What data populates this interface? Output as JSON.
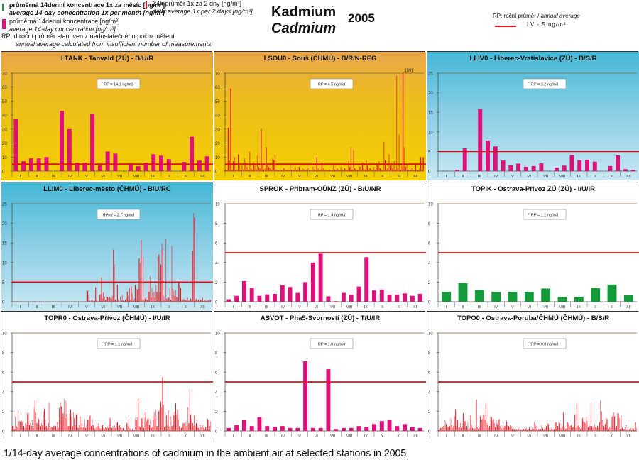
{
  "legend": {
    "green": {
      "cz": "průměrná 14denní koncentrace 1x za měsíc  [ng/m³]",
      "en": "average 14-day concentration 1x per month  [ng/m³]",
      "color": "#1a9a3a"
    },
    "red": {
      "cz": "24h průměr 1x za 2 dny [ng/m³]",
      "en": "daily average 1x per 2 days [ng/m³]",
      "color": "#e0101a"
    },
    "magenta": {
      "cz": "průměrná 14denní koncentrace [ng/m³]",
      "en": "average 14-day concentration  [ng/m³]",
      "color": "#e0107a"
    },
    "rpnd": {
      "cz": "RPnd  roční průměr stanoven z nedostatečného počtu měření",
      "en": "annual average calculated from insufficient number of measurements"
    }
  },
  "title": {
    "cz": "Kadmium",
    "en": "Cadmium",
    "year": "2005"
  },
  "rp_legend": {
    "cz": "RP: roční průměr / ",
    "en": "annual average",
    "lv_label": "LV    - 5 ng/m³",
    "lv_color": "#e0101a"
  },
  "caption": "1/14-day average concentrations of cadmium in the ambient air at selected stations in 2005",
  "months": [
    "I",
    "II",
    "III",
    "IV",
    "V",
    "VI",
    "VII",
    "VIII",
    "IX",
    "X",
    "XI",
    "XII"
  ],
  "chart_data": [
    {
      "id": "LTANK",
      "type": "bar",
      "title": "LTANK - Tanvald (ZÚ) - B/U/R",
      "background": "orange",
      "series_kind": "14day",
      "ylim": [
        0,
        70
      ],
      "yticks": [
        0,
        10,
        20,
        30,
        40,
        50,
        60,
        70
      ],
      "annotation": "RP = 14.1 ng/m3",
      "limit": 5,
      "values": [
        37,
        7,
        9,
        9,
        10,
        null,
        43,
        30,
        6,
        6,
        41,
        4,
        14,
        12.5,
        null,
        5.5,
        3.5,
        6,
        12,
        11,
        8.5,
        null,
        6.5,
        24.5,
        7.5,
        10.5
      ]
    },
    {
      "id": "LSOU0",
      "type": "bar",
      "title": "LSOU0 - Souš (ČHMÚ) - B/R/N-REG",
      "background": "orange",
      "series_kind": "daily",
      "ylim": [
        0,
        70
      ],
      "yticks": [
        0,
        10,
        20,
        30,
        40,
        50,
        60,
        70
      ],
      "annotation": "RP = 4.5 ng/m3",
      "limit": 5,
      "overflow_label": "[89]",
      "values": [
        1,
        0.5,
        31,
        8,
        59,
        1,
        7,
        10,
        0.5,
        1,
        12,
        4,
        0.5,
        4,
        1,
        9,
        6,
        3,
        1,
        14,
        2,
        1,
        6,
        4,
        1,
        11,
        3,
        2,
        30,
        5,
        1,
        2,
        17,
        4,
        3,
        2,
        1,
        9,
        8,
        12,
        1,
        0.5,
        0.5,
        1,
        0.5,
        1,
        2,
        1,
        0.5,
        1,
        0.5,
        4,
        1,
        0.5,
        0.5,
        3,
        0.5,
        1,
        3,
        0.5,
        0.5,
        2,
        1,
        0.5,
        1,
        2,
        0.5,
        1,
        0.5,
        3,
        1,
        0.5,
        10,
        2,
        0.5,
        1,
        6,
        2,
        0.5,
        1,
        0.5,
        0.5,
        1,
        0.5,
        0.5,
        4,
        1,
        0.5,
        2,
        1,
        0.5,
        3,
        1,
        0.5,
        2,
        1,
        0.5,
        7,
        3,
        17,
        1,
        15,
        2,
        1,
        0.5,
        1,
        3,
        1,
        6,
        2,
        1,
        8,
        4,
        1,
        2,
        1,
        0.5,
        3,
        1,
        6,
        4,
        7,
        2,
        1,
        0.5,
        21,
        8,
        1,
        2,
        12,
        4,
        6,
        2,
        7,
        1,
        68,
        2,
        26,
        1,
        4,
        89,
        17,
        3,
        5,
        1,
        0.5,
        1,
        2,
        1,
        0.5,
        5,
        1,
        0.5,
        2,
        10,
        1,
        10
      ]
    },
    {
      "id": "LLIV0",
      "type": "bar",
      "title": "LLIV0 - Liberec-Vratislavice (ZÚ) - B/S/R",
      "background": "blue",
      "series_kind": "14day",
      "ylim": [
        0,
        25
      ],
      "yticks": [
        0,
        5,
        10,
        15,
        20,
        25
      ],
      "annotation": "RP = 3.2 ng/m3",
      "limit": 5,
      "values": [
        null,
        null,
        0.3,
        5.8,
        null,
        15.8,
        7.8,
        6.3,
        2.7,
        1.5,
        1.9,
        1.1,
        1.3,
        2,
        null,
        0.9,
        1.4,
        4.1,
        2.8,
        2.9,
        2.4,
        null,
        1.3,
        4,
        0.5,
        0.3
      ]
    },
    {
      "id": "LLIM0",
      "type": "bar",
      "title": "LLIM0 - Liberec-město (ČHMÚ) - B/U/RC",
      "background": "blue",
      "series_kind": "daily",
      "ylim": [
        0,
        25
      ],
      "yticks": [
        0,
        5,
        10,
        15,
        20,
        25
      ],
      "annotation": "RPnd = 2.7 ng/m3",
      "annotation_italic": true,
      "limit": 5,
      "values": [
        0,
        0,
        0,
        0,
        0,
        0,
        0,
        0,
        0,
        0,
        0,
        0,
        0,
        0,
        0,
        0,
        0,
        0,
        0,
        0,
        0,
        0,
        0,
        0,
        0,
        0,
        0,
        0,
        0,
        0,
        0,
        0,
        0,
        0,
        0,
        0,
        0,
        0,
        0,
        0,
        0,
        0,
        0,
        0,
        0,
        0,
        0,
        0,
        0,
        0,
        0,
        0,
        0,
        0,
        0,
        0,
        0,
        0,
        0,
        0,
        0,
        0,
        0,
        0,
        0,
        0,
        0,
        0,
        0,
        0,
        0,
        0,
        0,
        0,
        0,
        3,
        2.8,
        1.6,
        0.3,
        0,
        0.5,
        0.4,
        0,
        0.3,
        3.7,
        0.5,
        0,
        0.2,
        1.8,
        2,
        6.2,
        0.8,
        2.3,
        1.3,
        0.5,
        1.3,
        1.2,
        1,
        1.2,
        1,
        0.8,
        1.5,
        13.3,
        9.5,
        0.5,
        0,
        4.3,
        0.5,
        0,
        1.3,
        0.4,
        1.8,
        0.3,
        0.2,
        0.5,
        0.8,
        2.6,
        1.5,
        3.5,
        0.5,
        4,
        2.2,
        0.5,
        0.8,
        4.3,
        0.5,
        3.2,
        3.2,
        11,
        9.8,
        15.8,
        0.5,
        11.7,
        0.5,
        0.8,
        1.2,
        0.5,
        5.6,
        2.5,
        6.5,
        1,
        3.5,
        2.2,
        2.5,
        1,
        4.3,
        2.5,
        11.5,
        12,
        2.5,
        9.5,
        14.8,
        13.3,
        1.5,
        0.5,
        16.1,
        0.8,
        0.5,
        1,
        3.5,
        0.5,
        14.2,
        3.2,
        2.8,
        1.5,
        3,
        1.2,
        1,
        4.9,
        4.9,
        3.5,
        0.5,
        0.5,
        0.8,
        0.5,
        0.5,
        0.3,
        1,
        0.3,
        0.2,
        0.8,
        0.6,
        13,
        22.6,
        21.5,
        0.5,
        0.8,
        0.3,
        0.5,
        0.2,
        0.5,
        0.5,
        1,
        0.2,
        0.3,
        0.5,
        0.2,
        0.5,
        0.3,
        0.6,
        0.5
      ]
    },
    {
      "id": "SPROK",
      "type": "bar",
      "title": "SPROK - Příbram-OÚNZ (ZÚ) - B/U/NR",
      "background": "white",
      "series_kind": "14day",
      "ylim": [
        0,
        10
      ],
      "yticks": [
        0,
        2,
        4,
        6,
        8,
        10
      ],
      "annotation": "RP = 1.4 ng/m3",
      "limit": 5,
      "values": [
        0.25,
        0.6,
        2.1,
        1.4,
        0.6,
        0.75,
        0.8,
        1.7,
        1.5,
        0.9,
        2,
        4,
        4.9,
        0.55,
        0.05,
        0.9,
        0.7,
        1.55,
        4.55,
        1.15,
        1.25,
        0.7,
        0.7,
        0.85,
        0.6,
        0.8
      ]
    },
    {
      "id": "TOPIK",
      "type": "bar",
      "title": "TOPIK - Ostrava-Přívoz ZÚ (ZÚ) - I/U/IR",
      "background": "white",
      "series_kind": "monthly",
      "ylim": [
        0,
        10
      ],
      "yticks": [
        0,
        2,
        4,
        6,
        8,
        10
      ],
      "annotation": "RP = 1.1 ng/m3",
      "limit": 5,
      "values": [
        1,
        1.9,
        1.2,
        1,
        1,
        1,
        1.35,
        0.5,
        0.5,
        1.4,
        1.75,
        0.65
      ]
    },
    {
      "id": "TOPR0",
      "type": "bar",
      "title": "TOPR0 - Ostrava-Přívoz (ČHMÚ) - I/U/IR",
      "background": "white",
      "series_kind": "daily",
      "ylim": [
        0,
        10
      ],
      "yticks": [
        0,
        2,
        4,
        6,
        8,
        10
      ],
      "annotation": "RP = 1.1 ng/m3",
      "limit": 5,
      "values": [
        0.5,
        0.5,
        0.2,
        1.5,
        0.5,
        0.4,
        2.1,
        1,
        1,
        0.3,
        1,
        0.8,
        0.5,
        0.3,
        0.8,
        0.6,
        1.8,
        1.8,
        0.6,
        0.8,
        0.5,
        1.1,
        0.3,
        2.3,
        3.1,
        1.9,
        0.8,
        0.5,
        1.2,
        0.6,
        0.5,
        0.8,
        0.6,
        2,
        2.3,
        1.2,
        0.5,
        0.3,
        0.8,
        2.9,
        0.3,
        0.4,
        0.4,
        0.3,
        0.5,
        0.6,
        0.5,
        0.2,
        0.9,
        0.3,
        2.3,
        2.9,
        2.5,
        1.4,
        1.8,
        3.3,
        1.3,
        3.1,
        1.7,
        0.5,
        0.5,
        1.8,
        2.2,
        1.5,
        0.5,
        1.9,
        1.3,
        0.6,
        1.7,
        1.7,
        0.3,
        0.6,
        1.5,
        0.4,
        0.8,
        0.3,
        0.4,
        1.2,
        0.3,
        0.6,
        1.1,
        1.1,
        1.5,
        1.6,
        0.5,
        1.2,
        0.6,
        0.3,
        0.2,
        0.4,
        0.5,
        0.5,
        0.8,
        0.3,
        0.2,
        0.3,
        0.6,
        0.3,
        0.2,
        0.4,
        0.3,
        0.5,
        0.3,
        0.6,
        1.3,
        0.2,
        0.3,
        0.5,
        0.3,
        0.6,
        0.3,
        0.8,
        0.9,
        0.5,
        0.6,
        0.4,
        0.3,
        0.1,
        0.3,
        0.2,
        0.1,
        0.2,
        0.8,
        0.5,
        1.2,
        0.3,
        0.2,
        0.1,
        0.2,
        0.1,
        0.1,
        1.3,
        1.1,
        1.4,
        3.3,
        0.5,
        0.4,
        1.3,
        1.3,
        0.6,
        0.3,
        1.4,
        1.9,
        1,
        1.2,
        1.3,
        0.6,
        1.2,
        0.3,
        0.4,
        1.1,
        1.9,
        1.5,
        2.2,
        0.5,
        0.3,
        2,
        2.2,
        3,
        2.4,
        5.5,
        2.7,
        0.4,
        0.5,
        1.6,
        0.6,
        2.1,
        0.5,
        0.2,
        1.5,
        0.5,
        0.6,
        1.6,
        2,
        2.8,
        1.7,
        2.2,
        1.2,
        0.5,
        0.2,
        0.3,
        0.5,
        0.8,
        0.8,
        0.5,
        0.9,
        0.5,
        2.4,
        0.8,
        4.3,
        1.7,
        1.2,
        0.8,
        0.5,
        1.6,
        0.5,
        0.8,
        0.6,
        0.3,
        0.2,
        0.6,
        0.4,
        0.4,
        0.6,
        0.3,
        0.2,
        0.4,
        0.2,
        1.2,
        1.1,
        0.5,
        1
      ]
    },
    {
      "id": "ASVOT",
      "type": "bar",
      "title": "ASVOT - Pha5-Svornosti (ZÚ) - T/U/IR",
      "background": "white",
      "series_kind": "14day",
      "ylim": [
        0,
        10
      ],
      "yticks": [
        0,
        2,
        4,
        6,
        8,
        10
      ],
      "annotation": "RP = 1.0 ng/m3",
      "limit": 5,
      "values": [
        0.3,
        0.6,
        1.1,
        0.5,
        1.4,
        0.5,
        0.4,
        0.5,
        0.3,
        0.3,
        7.1,
        0.3,
        0.3,
        6.3,
        0.2,
        0.3,
        0.3,
        0.5,
        0.4,
        0.7,
        1,
        1.1,
        0.5,
        0.7,
        0.4,
        0.3
      ]
    },
    {
      "id": "TOPO0",
      "type": "bar",
      "title": "TOPO0 - Ostrava-Poruba/ČHMÚ (ČHMÚ) - B/S/R",
      "background": "white",
      "series_kind": "daily",
      "ylim": [
        0,
        10
      ],
      "yticks": [
        0,
        2,
        4,
        6,
        8,
        10
      ],
      "annotation": "RP = 0.8 ng/m3",
      "limit": 5,
      "values": [
        0.1,
        0.2,
        0.3,
        0.3,
        0.4,
        0.5,
        0.3,
        1.1,
        0.7,
        0.2,
        0.4,
        0.6,
        0.5,
        1.3,
        0.6,
        0.3,
        0.5,
        1.5,
        2.2,
        0.5,
        1.1,
        0.3,
        0.4,
        0.8,
        0.3,
        0.5,
        1.8,
        1,
        1,
        0.3,
        0.5,
        0.9,
        0.2,
        0.3,
        1.6,
        0.6,
        0.3,
        0.2,
        0.2,
        0.3,
        3.2,
        0.4,
        0.2,
        0.3,
        1.5,
        0.7,
        1.2,
        1.7,
        1.6,
        1.1,
        2.8,
        0.8,
        0.6,
        0.3,
        0.5,
        1.5,
        1.4,
        1,
        1.2,
        0.8,
        0.4,
        1.1,
        0.7,
        0.6,
        1.2,
        0.5,
        0.3,
        0.2,
        0.6,
        0.3,
        0.5,
        0.6,
        1,
        0.6,
        0.5,
        0.4,
        0.6,
        0.5,
        0.2,
        0.3,
        0.2,
        0.1,
        0.2,
        0.1,
        0.2,
        0.3,
        0.1,
        0.2,
        0.1,
        0.3,
        0.2,
        0.1,
        0.2,
        0.3,
        0.1,
        0.2,
        0.4,
        0.2,
        0.1,
        0.3,
        0.2,
        0.9,
        0.7,
        0.5,
        0.2,
        0.1,
        0.2,
        0.1,
        0.2,
        0.6,
        0.3,
        0.1,
        0.2,
        0.3,
        0.5,
        0.8,
        0.7,
        0.2,
        0.1,
        0.3,
        0.2,
        0.1,
        0.2,
        0.8,
        0.9,
        0.3,
        0.5,
        0.9,
        0.8,
        0.3,
        0.2,
        0.5,
        1.9,
        0.4,
        0.2,
        0.3,
        0.9,
        0.8,
        0.4,
        0.5,
        0.6,
        0.3,
        0.4,
        0.5,
        1.7,
        0.3,
        2.8,
        0.5,
        0.6,
        0.4,
        0.2,
        0.3,
        1.3,
        1,
        0.9,
        0.8,
        1.5,
        1,
        0.4,
        1.5,
        0.5,
        2.9,
        0.5,
        0.3,
        0.5,
        0.7,
        0.4,
        0.3,
        0.5,
        0.3,
        0.9,
        3.1,
        2,
        1.1,
        0.5,
        0.3,
        0.7,
        1.3,
        1.2,
        0.5,
        0.2,
        0.4,
        0.3,
        1.4,
        1.5,
        1.9,
        1.5,
        0.3,
        0.5,
        1.8,
        1.8,
        1.3,
        0.2,
        1.6,
        0.3,
        0.1,
        0.2,
        0.4,
        0.6,
        0.1,
        0.2,
        0.1,
        0.2,
        0.3,
        0.1,
        0.3,
        0.2,
        0.1,
        0.9,
        0.3
      ]
    }
  ]
}
